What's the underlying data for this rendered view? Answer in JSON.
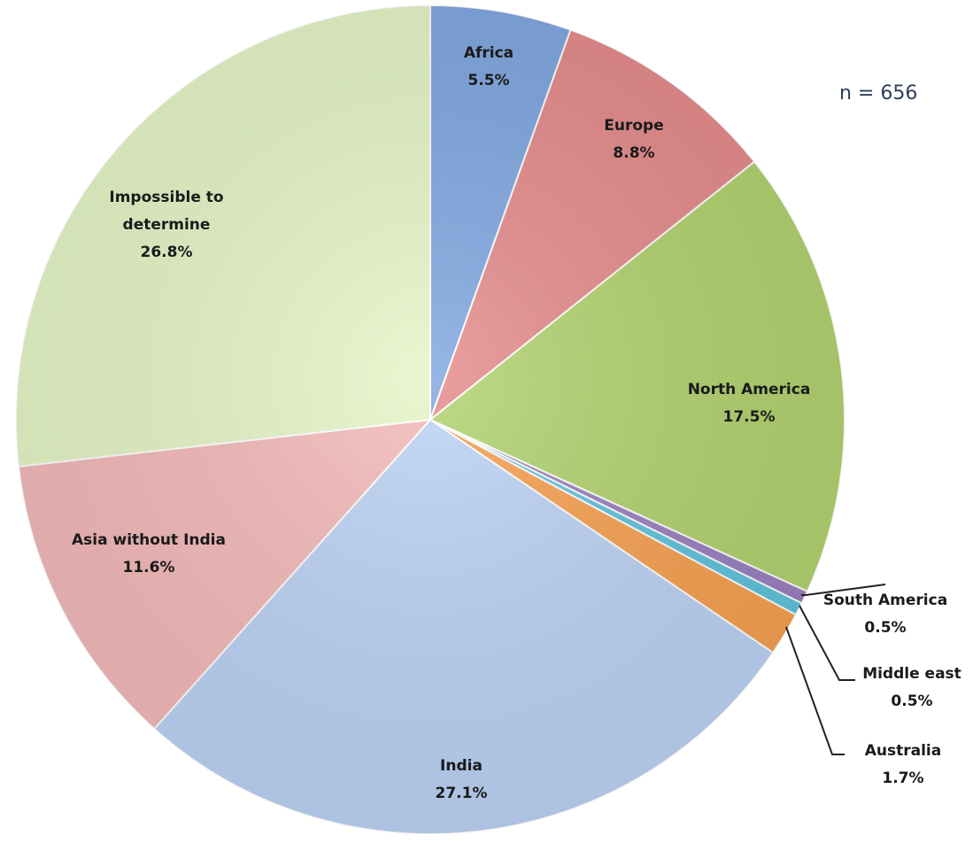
{
  "chart_data": {
    "type": "pie",
    "annotation": "n = 656",
    "slices": [
      {
        "label": "Africa",
        "line1": "Africa",
        "line2": "",
        "pct_label": "5.5%",
        "value": 5.5,
        "color": "#7ea6e0",
        "edge": "#5a86c8"
      },
      {
        "label": "Europe",
        "line1": "Europe",
        "line2": "",
        "pct_label": "8.8%",
        "value": 8.8,
        "color": "#e58a8a",
        "edge": "#c85a5a"
      },
      {
        "label": "North America",
        "line1": "North America",
        "line2": "",
        "pct_label": "17.5%",
        "value": 17.5,
        "color": "#b1d26d",
        "edge": "#8fb54a"
      },
      {
        "label": "South America",
        "line1": "South America",
        "line2": "",
        "pct_label": "0.5%",
        "value": 0.5,
        "color": "#9a7fbf",
        "edge": "#7a5fa0"
      },
      {
        "label": "Middle east",
        "line1": "Middle east",
        "line2": "",
        "pct_label": "0.5%",
        "value": 0.5,
        "color": "#5ec3dd",
        "edge": "#3aa3c0"
      },
      {
        "label": "Australia",
        "line1": "Australia",
        "line2": "",
        "pct_label": "1.7%",
        "value": 1.7,
        "color": "#f7a04f",
        "edge": "#d98230"
      },
      {
        "label": "India",
        "line1": "India",
        "line2": "",
        "pct_label": "27.1%",
        "value": 27.1,
        "color": "#bcd3f5",
        "edge": "#9ab6e0"
      },
      {
        "label": "Asia without India",
        "line1": "Asia without India",
        "line2": "",
        "pct_label": "11.6%",
        "value": 11.6,
        "color": "#f4b9b9",
        "edge": "#dc9a9a"
      },
      {
        "label": "Impossible to determine",
        "line1": "Impossible to",
        "line2": "determine",
        "pct_label": "26.8%",
        "value": 26.8,
        "color": "#e6f5c6",
        "edge": "#cfe3a5"
      }
    ]
  }
}
